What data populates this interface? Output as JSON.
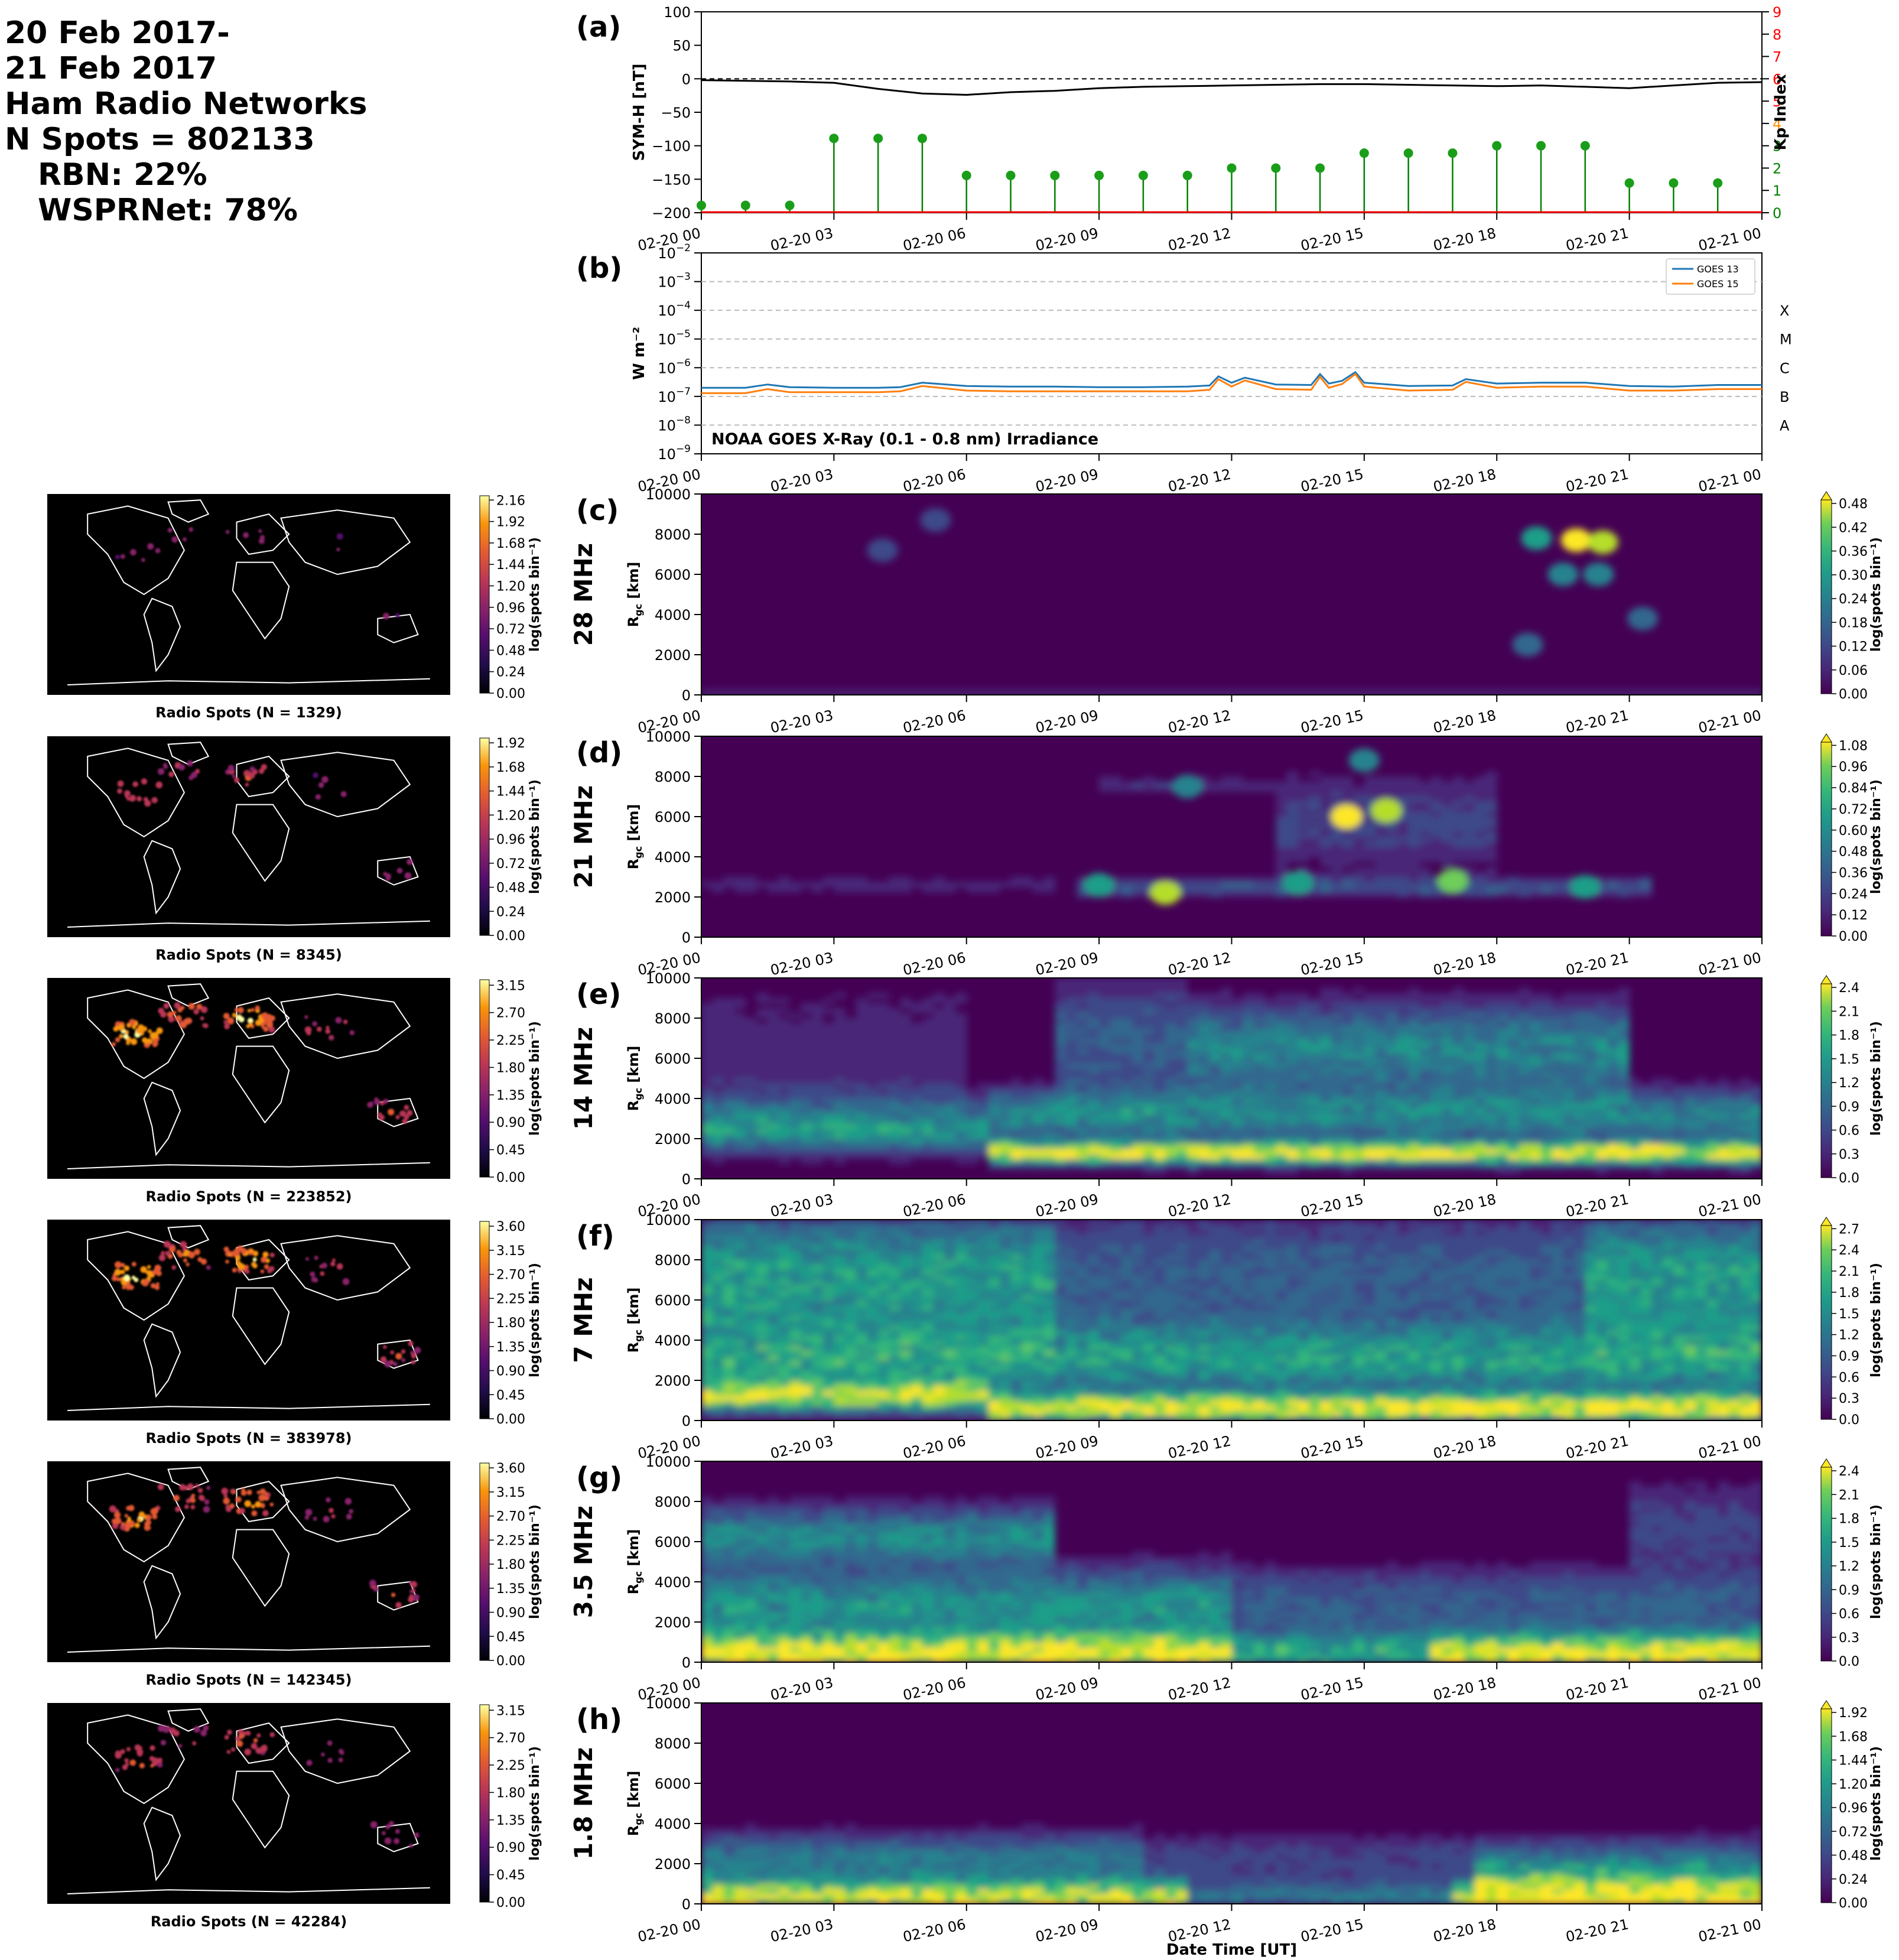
{
  "header": {
    "lines": [
      "20 Feb 2017-",
      "21 Feb 2017",
      "Ham Radio Networks",
      "N Spots = 802133"
    ],
    "rbn": "RBN: 22%",
    "wsprnet": "WSPRNet: 78%"
  },
  "x_axis": {
    "ticks": [
      "02-20 00",
      "02-20 03",
      "02-20 06",
      "02-20 09",
      "02-20 12",
      "02-20 15",
      "02-20 18",
      "02-20 21",
      "02-21 00"
    ],
    "xlabel": "Date Time [UT]"
  },
  "colors": {
    "symh": "#000000",
    "kp_stem": "#008000",
    "kp_dot": "#1a9e1a",
    "kp_axis": "#ff0000",
    "goes13": "#1f77b4",
    "goes15": "#ff7f0e",
    "map_bg": "#000000",
    "coast": "#ffffff"
  },
  "chart_data": [
    {
      "id": "a",
      "panel_label": "(a)",
      "type": "line",
      "ylabel": "SYM-H [nT]",
      "ylim": [
        -200,
        100
      ],
      "yticks": [
        "100",
        "50",
        "0",
        "−50",
        "−100",
        "−150",
        "−200"
      ],
      "y2label": "Kp Index",
      "y2lim": [
        0,
        9
      ],
      "y2ticks": [
        "0",
        "1",
        "2",
        "3",
        "4",
        "5",
        "6",
        "7",
        "8",
        "9"
      ],
      "symh": {
        "x_hours": [
          0,
          1,
          2,
          3,
          4,
          5,
          6,
          7,
          8,
          9,
          10,
          11,
          12,
          13,
          14,
          15,
          16,
          17,
          18,
          19,
          20,
          21,
          22,
          23,
          24
        ],
        "values": [
          -2,
          -3,
          -4,
          -6,
          -15,
          -22,
          -24,
          -20,
          -18,
          -14,
          -12,
          -11,
          -10,
          -9,
          -8,
          -8,
          -9,
          -10,
          -11,
          -10,
          -12,
          -14,
          -10,
          -6,
          -5
        ]
      },
      "kp": {
        "x_hours": [
          0,
          1,
          2,
          3,
          4,
          5,
          6,
          7,
          8,
          9,
          10,
          11,
          12,
          13,
          14,
          15,
          16,
          17,
          18,
          19,
          20,
          21,
          22,
          23
        ],
        "values": [
          0.33,
          0.33,
          0.33,
          3.33,
          3.33,
          3.33,
          1.67,
          1.67,
          1.67,
          1.67,
          1.67,
          1.67,
          2,
          2,
          2,
          2.67,
          2.67,
          2.67,
          3,
          3,
          3,
          1.33,
          1.33,
          1.33
        ]
      },
      "zero_line": 0
    },
    {
      "id": "b",
      "panel_label": "(b)",
      "type": "line",
      "ylabel": "W m⁻²",
      "yscale": "log",
      "ylim_exp": [
        -9,
        -2
      ],
      "ytick_exps": [
        -9,
        -8,
        -7,
        -6,
        -5,
        -4,
        -3,
        -2
      ],
      "flare_classes": [
        {
          "label": "X",
          "exp": -4
        },
        {
          "label": "M",
          "exp": -5
        },
        {
          "label": "C",
          "exp": -6
        },
        {
          "label": "B",
          "exp": -7
        },
        {
          "label": "A",
          "exp": -8
        }
      ],
      "annotation": "NOAA GOES X-Ray (0.1 - 0.8 nm) Irradiance",
      "series": [
        {
          "name": "GOES 13",
          "x_hours": [
            0,
            1,
            1.5,
            2,
            3,
            4,
            4.5,
            5,
            6,
            7,
            8,
            9,
            10,
            11,
            11.5,
            11.7,
            12,
            12.3,
            13,
            13.8,
            14,
            14.2,
            14.5,
            14.8,
            15,
            16,
            17,
            17.3,
            18,
            19,
            20,
            21,
            22,
            23,
            24
          ],
          "values": [
            2e-07,
            2e-07,
            2.6e-07,
            2.1e-07,
            2e-07,
            2e-07,
            2.1e-07,
            3e-07,
            2.3e-07,
            2.2e-07,
            2.2e-07,
            2.1e-07,
            2.1e-07,
            2.2e-07,
            2.4e-07,
            5e-07,
            3e-07,
            4.5e-07,
            2.6e-07,
            2.5e-07,
            6e-07,
            2.8e-07,
            3.5e-07,
            7e-07,
            3e-07,
            2.3e-07,
            2.4e-07,
            4e-07,
            2.8e-07,
            3e-07,
            3e-07,
            2.3e-07,
            2.2e-07,
            2.5e-07,
            2.5e-07
          ]
        },
        {
          "name": "GOES 15",
          "x_hours": [
            0,
            1,
            1.5,
            2,
            3,
            4,
            4.5,
            5,
            6,
            7,
            8,
            9,
            10,
            11,
            11.5,
            11.7,
            12,
            12.3,
            13,
            13.8,
            14,
            14.2,
            14.5,
            14.8,
            15,
            16,
            17,
            17.3,
            18,
            19,
            20,
            21,
            22,
            23,
            24
          ],
          "values": [
            1.3e-07,
            1.3e-07,
            1.8e-07,
            1.4e-07,
            1.4e-07,
            1.4e-07,
            1.5e-07,
            2.3e-07,
            1.6e-07,
            1.5e-07,
            1.5e-07,
            1.5e-07,
            1.5e-07,
            1.5e-07,
            1.7e-07,
            4e-07,
            2.2e-07,
            3.6e-07,
            1.8e-07,
            1.7e-07,
            4.8e-07,
            2e-07,
            2.7e-07,
            6e-07,
            2.2e-07,
            1.6e-07,
            1.7e-07,
            3.2e-07,
            2e-07,
            2.2e-07,
            2.2e-07,
            1.6e-07,
            1.6e-07,
            1.8e-07,
            1.8e-07
          ]
        }
      ]
    },
    {
      "id": "c",
      "panel_label": "(c)",
      "band": "28 MHz",
      "type": "heatmap",
      "ylabel": "R_gc [km]",
      "ylim": [
        0,
        10000
      ],
      "yticks": [
        "0",
        "2000",
        "4000",
        "6000",
        "8000",
        "10000"
      ],
      "cbar_label": "log(spots bin⁻¹)",
      "cbar_ticks": [
        "0.00",
        "0.06",
        "0.12",
        "0.18",
        "0.24",
        "0.30",
        "0.36",
        "0.42",
        "0.48"
      ],
      "map_caption": "Radio Spots (N = 1329)",
      "map_cbar_ticks": [
        "0.00",
        "0.24",
        "0.48",
        "0.72",
        "0.96",
        "1.20",
        "1.44",
        "1.68",
        "1.92",
        "2.16"
      ],
      "profile": {
        "low_km": 200,
        "mid_km": 0,
        "high_km": 0,
        "night_level": 0.05,
        "day_level": 0.15,
        "clutter": 0.0
      },
      "blobs": [
        {
          "t_hours": 19.8,
          "r_km": 7700,
          "intensity": 1.0
        },
        {
          "t_hours": 20.4,
          "r_km": 7600,
          "intensity": 0.9
        },
        {
          "t_hours": 18.9,
          "r_km": 7800,
          "intensity": 0.5
        },
        {
          "t_hours": 19.5,
          "r_km": 6000,
          "intensity": 0.4
        },
        {
          "t_hours": 20.3,
          "r_km": 6000,
          "intensity": 0.4
        },
        {
          "t_hours": 18.7,
          "r_km": 2500,
          "intensity": 0.3
        },
        {
          "t_hours": 21.3,
          "r_km": 3800,
          "intensity": 0.3
        },
        {
          "t_hours": 5.3,
          "r_km": 8700,
          "intensity": 0.2
        },
        {
          "t_hours": 4.1,
          "r_km": 7200,
          "intensity": 0.2
        }
      ]
    },
    {
      "id": "d",
      "panel_label": "(d)",
      "band": "21 MHz",
      "type": "heatmap",
      "ylabel": "R_gc [km]",
      "ylim": [
        0,
        10000
      ],
      "yticks": [
        "0",
        "2000",
        "4000",
        "6000",
        "8000",
        "10000"
      ],
      "cbar_label": "log(spots bin⁻¹)",
      "cbar_ticks": [
        "0.00",
        "0.12",
        "0.24",
        "0.36",
        "0.48",
        "0.60",
        "0.72",
        "0.84",
        "0.96",
        "1.08"
      ],
      "map_caption": "Radio Spots (N = 8345)",
      "map_cbar_ticks": [
        "0.00",
        "0.24",
        "0.48",
        "0.72",
        "0.96",
        "1.20",
        "1.44",
        "1.68",
        "1.92"
      ],
      "blobs": [
        {
          "t_hours": 14.6,
          "r_km": 6000,
          "intensity": 1.0
        },
        {
          "t_hours": 15.5,
          "r_km": 6300,
          "intensity": 0.9
        },
        {
          "t_hours": 10.5,
          "r_km": 2200,
          "intensity": 0.9
        },
        {
          "t_hours": 17.0,
          "r_km": 2800,
          "intensity": 0.8
        },
        {
          "t_hours": 9.0,
          "r_km": 2600,
          "intensity": 0.6
        },
        {
          "t_hours": 13.5,
          "r_km": 2700,
          "intensity": 0.5
        },
        {
          "t_hours": 20.0,
          "r_km": 2500,
          "intensity": 0.5
        },
        {
          "t_hours": 11.0,
          "r_km": 7500,
          "intensity": 0.4
        },
        {
          "t_hours": 15.0,
          "r_km": 8800,
          "intensity": 0.4
        }
      ]
    },
    {
      "id": "e",
      "panel_label": "(e)",
      "band": "14 MHz",
      "type": "heatmap",
      "ylabel": "R_gc [km]",
      "ylim": [
        0,
        10000
      ],
      "yticks": [
        "0",
        "2000",
        "4000",
        "6000",
        "8000",
        "10000"
      ],
      "cbar_label": "log(spots bin⁻¹)",
      "cbar_ticks": [
        "0.0",
        "0.3",
        "0.6",
        "0.9",
        "1.2",
        "1.5",
        "1.8",
        "2.1",
        "2.4"
      ],
      "map_caption": "Radio Spots (N = 223852)",
      "map_cbar_ticks": [
        "0.00",
        "0.45",
        "0.90",
        "1.35",
        "1.80",
        "2.25",
        "2.70",
        "3.15"
      ]
    },
    {
      "id": "f",
      "panel_label": "(f)",
      "band": "7 MHz",
      "type": "heatmap",
      "ylabel": "R_gc [km]",
      "ylim": [
        0,
        10000
      ],
      "yticks": [
        "0",
        "2000",
        "4000",
        "6000",
        "8000",
        "10000"
      ],
      "cbar_label": "log(spots bin⁻¹)",
      "cbar_ticks": [
        "0.0",
        "0.3",
        "0.6",
        "0.9",
        "1.2",
        "1.5",
        "1.8",
        "2.1",
        "2.4",
        "2.7"
      ],
      "map_caption": "Radio Spots (N = 383978)",
      "map_cbar_ticks": [
        "0.00",
        "0.45",
        "0.90",
        "1.35",
        "1.80",
        "2.25",
        "2.70",
        "3.15",
        "3.60"
      ]
    },
    {
      "id": "g",
      "panel_label": "(g)",
      "band": "3.5 MHz",
      "type": "heatmap",
      "ylabel": "R_gc [km]",
      "ylim": [
        0,
        10000
      ],
      "yticks": [
        "0",
        "2000",
        "4000",
        "6000",
        "8000",
        "10000"
      ],
      "cbar_label": "log(spots bin⁻¹)",
      "cbar_ticks": [
        "0.0",
        "0.3",
        "0.6",
        "0.9",
        "1.2",
        "1.5",
        "1.8",
        "2.1",
        "2.4"
      ],
      "map_caption": "Radio Spots (N = 142345)",
      "map_cbar_ticks": [
        "0.00",
        "0.45",
        "0.90",
        "1.35",
        "1.80",
        "2.25",
        "2.70",
        "3.15",
        "3.60"
      ]
    },
    {
      "id": "h",
      "panel_label": "(h)",
      "band": "1.8 MHz",
      "type": "heatmap",
      "ylabel": "R_gc [km]",
      "ylim": [
        0,
        10000
      ],
      "yticks": [
        "0",
        "2000",
        "4000",
        "6000",
        "8000",
        "10000"
      ],
      "cbar_label": "log(spots bin⁻¹)",
      "cbar_ticks": [
        "0.00",
        "0.24",
        "0.48",
        "0.72",
        "0.96",
        "1.20",
        "1.44",
        "1.68",
        "1.92"
      ],
      "map_caption": "Radio Spots (N = 42284)",
      "map_cbar_ticks": [
        "0.00",
        "0.45",
        "0.90",
        "1.35",
        "1.80",
        "2.25",
        "2.70",
        "3.15"
      ]
    }
  ]
}
